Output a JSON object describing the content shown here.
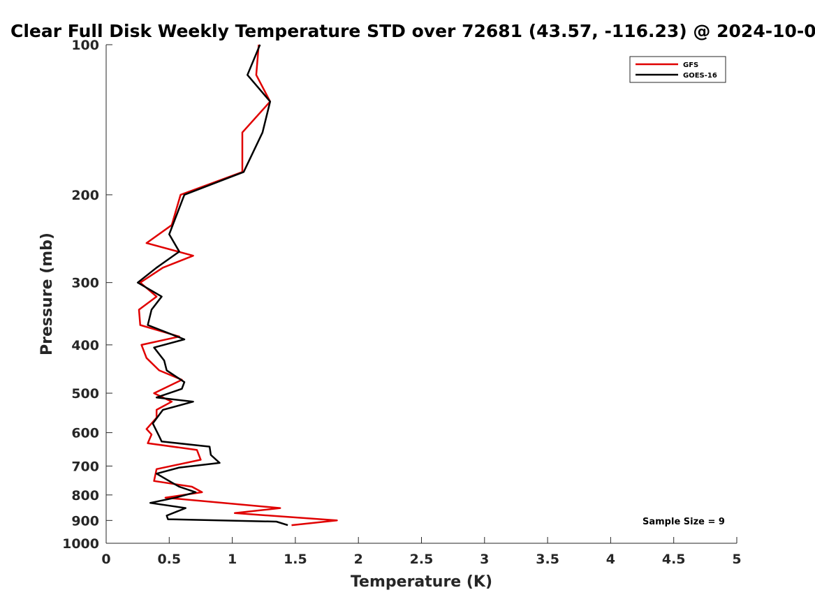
{
  "chart_data": {
    "type": "line",
    "title": "Clear Full Disk Weekly Temperature STD over 72681 (43.57, -116.23) @ 2024-10-0",
    "xlabel": "Temperature (K)",
    "ylabel": "Pressure (mb)",
    "xlim": [
      0,
      5
    ],
    "ylim": [
      100,
      1000
    ],
    "y_scale": "log",
    "y_reversed": true,
    "x_ticks": [
      0,
      0.5,
      1,
      1.5,
      2,
      2.5,
      3,
      3.5,
      4,
      4.5,
      5
    ],
    "x_tick_labels": [
      "0",
      "0.5",
      "1",
      "1.5",
      "2",
      "2.5",
      "3",
      "3.5",
      "4",
      "4.5",
      "5"
    ],
    "y_ticks": [
      100,
      200,
      300,
      400,
      500,
      600,
      700,
      800,
      900,
      1000
    ],
    "y_tick_labels": [
      "100",
      "200",
      "300",
      "400",
      "500",
      "600",
      "700",
      "800",
      "900",
      "1000"
    ],
    "grid": false,
    "legend_position": "top-right",
    "annotation": "Sample Size = 9",
    "series": [
      {
        "name": "GFS",
        "color": "#e00000",
        "points": [
          [
            1.21,
            100
          ],
          [
            1.19,
            115
          ],
          [
            1.3,
            130
          ],
          [
            1.08,
            150
          ],
          [
            1.08,
            180
          ],
          [
            0.59,
            200
          ],
          [
            0.52,
            230
          ],
          [
            0.32,
            250
          ],
          [
            0.69,
            265
          ],
          [
            0.45,
            280
          ],
          [
            0.27,
            300
          ],
          [
            0.4,
            320
          ],
          [
            0.26,
            340
          ],
          [
            0.27,
            365
          ],
          [
            0.58,
            385
          ],
          [
            0.28,
            400
          ],
          [
            0.32,
            425
          ],
          [
            0.42,
            450
          ],
          [
            0.6,
            470
          ],
          [
            0.38,
            500
          ],
          [
            0.52,
            520
          ],
          [
            0.4,
            540
          ],
          [
            0.4,
            560
          ],
          [
            0.32,
            590
          ],
          [
            0.36,
            605
          ],
          [
            0.33,
            630
          ],
          [
            0.72,
            650
          ],
          [
            0.75,
            680
          ],
          [
            0.4,
            710
          ],
          [
            0.38,
            750
          ],
          [
            0.68,
            770
          ],
          [
            0.76,
            790
          ],
          [
            0.47,
            810
          ],
          [
            1.38,
            850
          ],
          [
            1.02,
            870
          ],
          [
            1.83,
            900
          ],
          [
            1.47,
            920
          ]
        ]
      },
      {
        "name": "GOES-16",
        "color": "#000000",
        "points": [
          [
            1.22,
            100
          ],
          [
            1.12,
            115
          ],
          [
            1.3,
            130
          ],
          [
            1.24,
            150
          ],
          [
            1.09,
            180
          ],
          [
            0.62,
            200
          ],
          [
            0.5,
            240
          ],
          [
            0.58,
            260
          ],
          [
            0.4,
            280
          ],
          [
            0.25,
            300
          ],
          [
            0.44,
            320
          ],
          [
            0.36,
            340
          ],
          [
            0.33,
            365
          ],
          [
            0.62,
            390
          ],
          [
            0.38,
            405
          ],
          [
            0.46,
            430
          ],
          [
            0.48,
            450
          ],
          [
            0.62,
            475
          ],
          [
            0.6,
            490
          ],
          [
            0.4,
            510
          ],
          [
            0.69,
            520
          ],
          [
            0.45,
            540
          ],
          [
            0.37,
            575
          ],
          [
            0.42,
            610
          ],
          [
            0.44,
            625
          ],
          [
            0.82,
            640
          ],
          [
            0.83,
            665
          ],
          [
            0.9,
            690
          ],
          [
            0.58,
            705
          ],
          [
            0.4,
            725
          ],
          [
            0.52,
            755
          ],
          [
            0.58,
            770
          ],
          [
            0.71,
            790
          ],
          [
            0.55,
            810
          ],
          [
            0.35,
            830
          ],
          [
            0.63,
            850
          ],
          [
            0.48,
            880
          ],
          [
            0.49,
            895
          ],
          [
            1.35,
            905
          ],
          [
            1.44,
            920
          ]
        ]
      }
    ]
  }
}
